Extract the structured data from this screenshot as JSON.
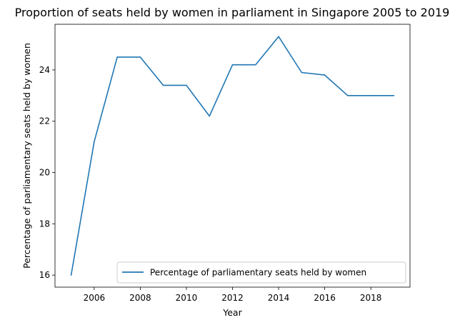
{
  "chart_data": {
    "type": "line",
    "title": "Proportion of seats held by women in parliament in Singapore 2005 to 2019",
    "xlabel": "Year",
    "ylabel": "Percentage of parliamentary seats held by women",
    "xlim": [
      2004.3,
      2019.7
    ],
    "ylim": [
      15.53,
      25.78
    ],
    "xticks": [
      2006,
      2008,
      2010,
      2012,
      2014,
      2016,
      2018
    ],
    "yticks": [
      16,
      18,
      20,
      22,
      24
    ],
    "grid": false,
    "legend_position": "lower-right",
    "x": [
      2005,
      2006,
      2007,
      2008,
      2009,
      2010,
      2011,
      2012,
      2013,
      2014,
      2015,
      2016,
      2017,
      2018,
      2019
    ],
    "series": [
      {
        "name": "Percentage of parliamentary seats held by women",
        "color": "#1f77b4",
        "values": [
          16.0,
          21.2,
          24.5,
          24.5,
          23.4,
          23.4,
          22.2,
          24.2,
          24.2,
          25.3,
          23.9,
          23.8,
          23.0,
          23.0,
          23.0
        ]
      }
    ]
  }
}
